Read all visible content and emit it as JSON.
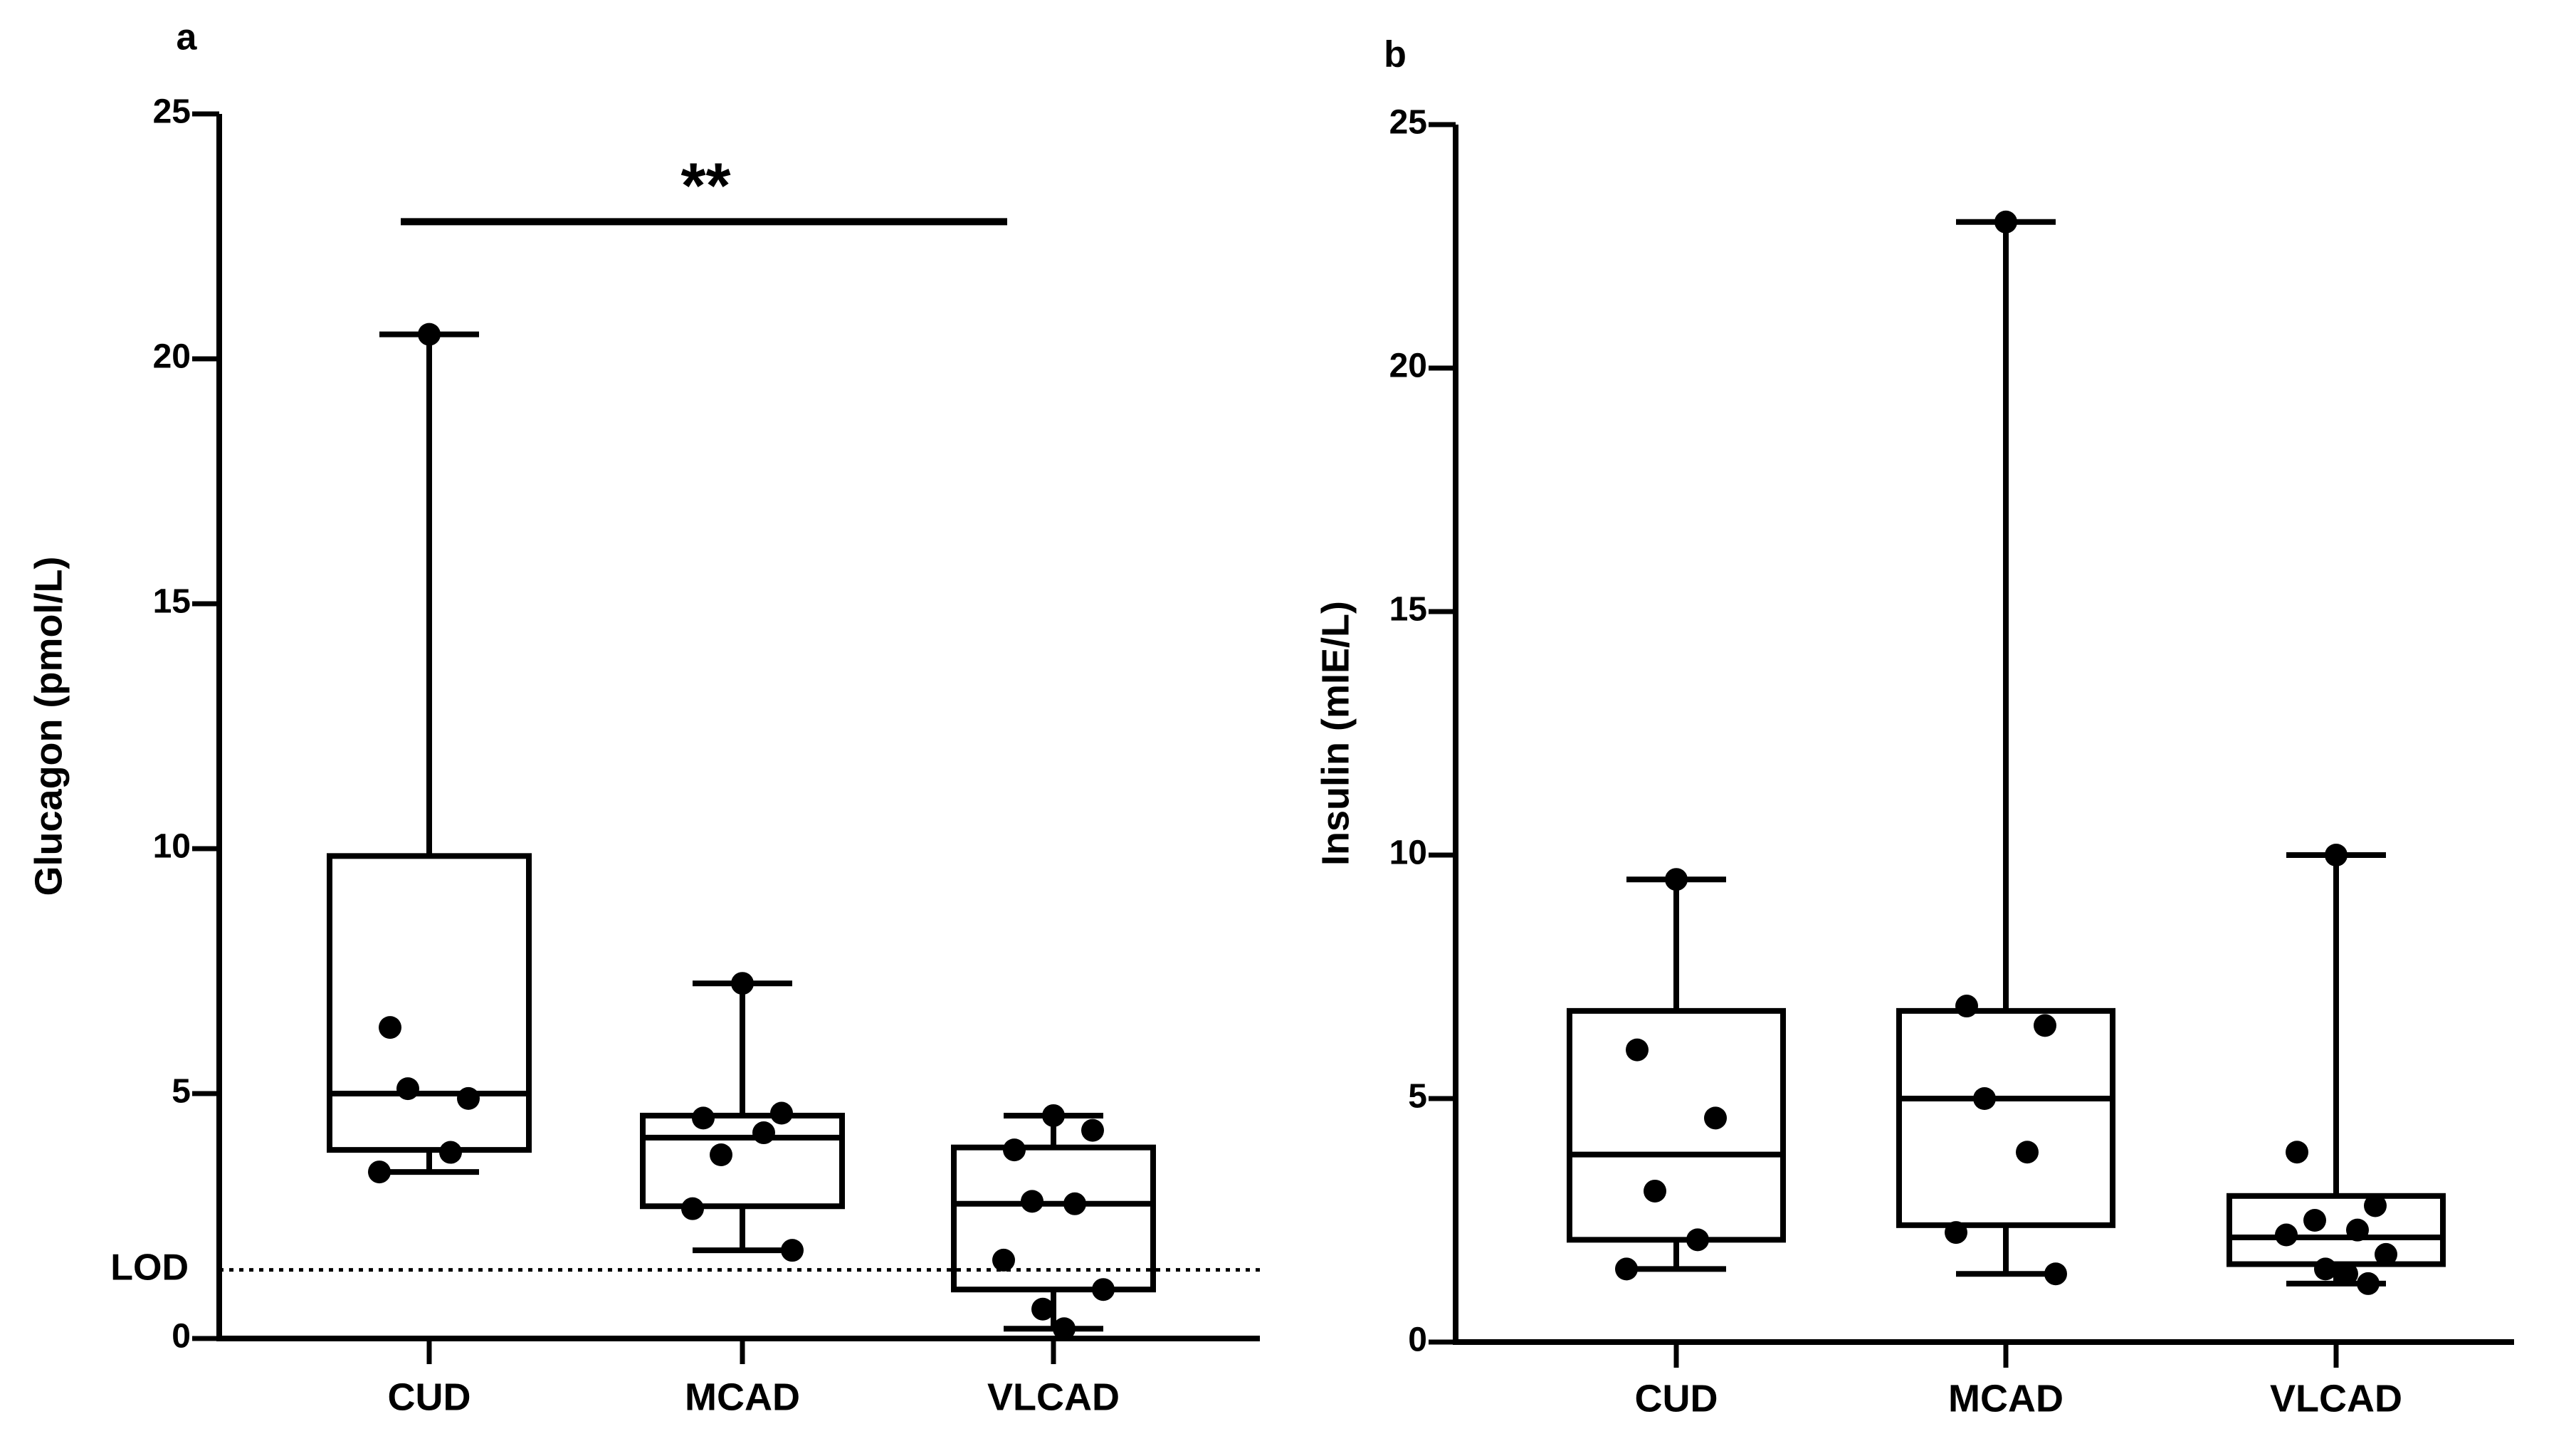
{
  "chart_data": [
    {
      "panel_label": "a",
      "type": "box",
      "title": "",
      "xlabel": "",
      "ylabel": "Glucagon (pmol/L)",
      "ylim": [
        0,
        25
      ],
      "yticks": [
        0,
        5,
        10,
        15,
        20,
        25
      ],
      "categories": [
        "CUD",
        "MCAD",
        "VLCAD"
      ],
      "boxes": [
        {
          "name": "CUD",
          "min": 3.4,
          "q1": 3.85,
          "median": 5.0,
          "q3": 9.85,
          "max": 20.5
        },
        {
          "name": "MCAD",
          "min": 1.8,
          "q1": 2.7,
          "median": 4.1,
          "q3": 4.55,
          "max": 7.25
        },
        {
          "name": "VLCAD",
          "min": 0.2,
          "q1": 1.0,
          "median": 2.75,
          "q3": 3.9,
          "max": 4.55
        }
      ],
      "points": [
        {
          "category": "CUD",
          "values": [
            20.5,
            6.35,
            4.9,
            5.1,
            3.8,
            3.4
          ]
        },
        {
          "category": "MCAD",
          "values": [
            7.25,
            4.5,
            4.6,
            3.75,
            4.2,
            2.65,
            1.8
          ]
        },
        {
          "category": "VLCAD",
          "values": [
            4.55,
            3.85,
            4.25,
            2.8,
            2.75,
            1.6,
            1.0,
            0.6,
            0.2
          ]
        }
      ],
      "reference_line": {
        "label": "LOD",
        "value": 1.4
      },
      "significance": {
        "label": "**",
        "from": "CUD",
        "to": "VLCAD",
        "y": 22.8
      }
    },
    {
      "panel_label": "b",
      "type": "box",
      "title": "",
      "xlabel": "",
      "ylabel": "Insulin (mIE/L)",
      "ylim": [
        0,
        25
      ],
      "yticks": [
        0,
        5,
        10,
        15,
        20,
        25
      ],
      "categories": [
        "CUD",
        "MCAD",
        "VLCAD"
      ],
      "boxes": [
        {
          "name": "CUD",
          "min": 1.5,
          "q1": 2.1,
          "median": 3.85,
          "q3": 6.8,
          "max": 9.5
        },
        {
          "name": "MCAD",
          "min": 1.4,
          "q1": 2.4,
          "median": 5.0,
          "q3": 6.8,
          "max": 23.0
        },
        {
          "name": "VLCAD",
          "min": 1.2,
          "q1": 1.6,
          "median": 2.15,
          "q3": 3.0,
          "max": 10.0
        }
      ],
      "points": [
        {
          "category": "CUD",
          "values": [
            9.5,
            6.0,
            4.6,
            3.1,
            2.1,
            1.5
          ]
        },
        {
          "category": "MCAD",
          "values": [
            23.0,
            6.9,
            6.5,
            5.0,
            3.9,
            2.25,
            1.4
          ]
        },
        {
          "category": "VLCAD",
          "values": [
            10.0,
            3.9,
            2.8,
            2.5,
            2.3,
            2.2,
            1.8,
            1.5,
            1.4,
            1.2
          ]
        }
      ]
    }
  ]
}
